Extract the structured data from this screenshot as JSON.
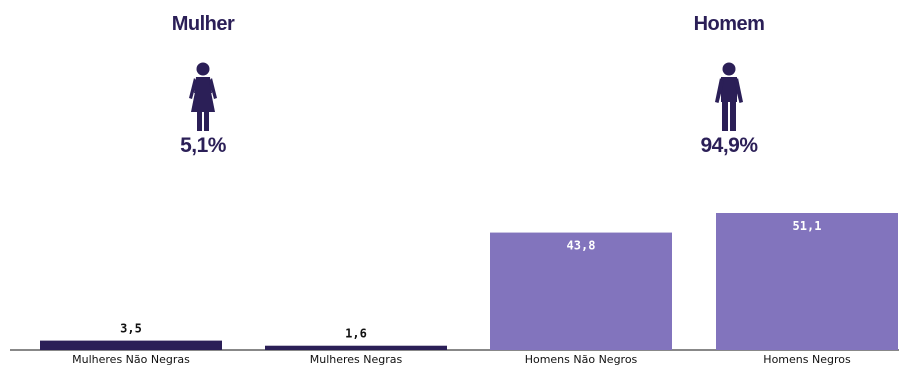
{
  "groups": [
    {
      "title": "Mulher",
      "icon": "woman-icon",
      "percent": "5,1%"
    },
    {
      "title": "Homem",
      "icon": "man-icon",
      "percent": "94,9%"
    }
  ],
  "colors": {
    "dark": "#2b1f57",
    "light": "#8274bd",
    "text": "#2b1f57"
  },
  "chart_data": {
    "type": "bar",
    "title": "",
    "xlabel": "",
    "ylabel": "",
    "ylim": [
      0,
      51.1
    ],
    "categories": [
      "Mulheres Não Negras",
      "Mulheres Negras",
      "Homens Não Negros",
      "Homens Negros"
    ],
    "values": [
      3.5,
      1.6,
      43.8,
      51.1
    ],
    "value_labels": [
      "3,5",
      "1,6",
      "43,8",
      "51,1"
    ],
    "bar_colors": [
      "#2b1f57",
      "#2b1f57",
      "#8274bd",
      "#8274bd"
    ],
    "label_position": [
      "above",
      "above",
      "inside",
      "inside"
    ]
  }
}
